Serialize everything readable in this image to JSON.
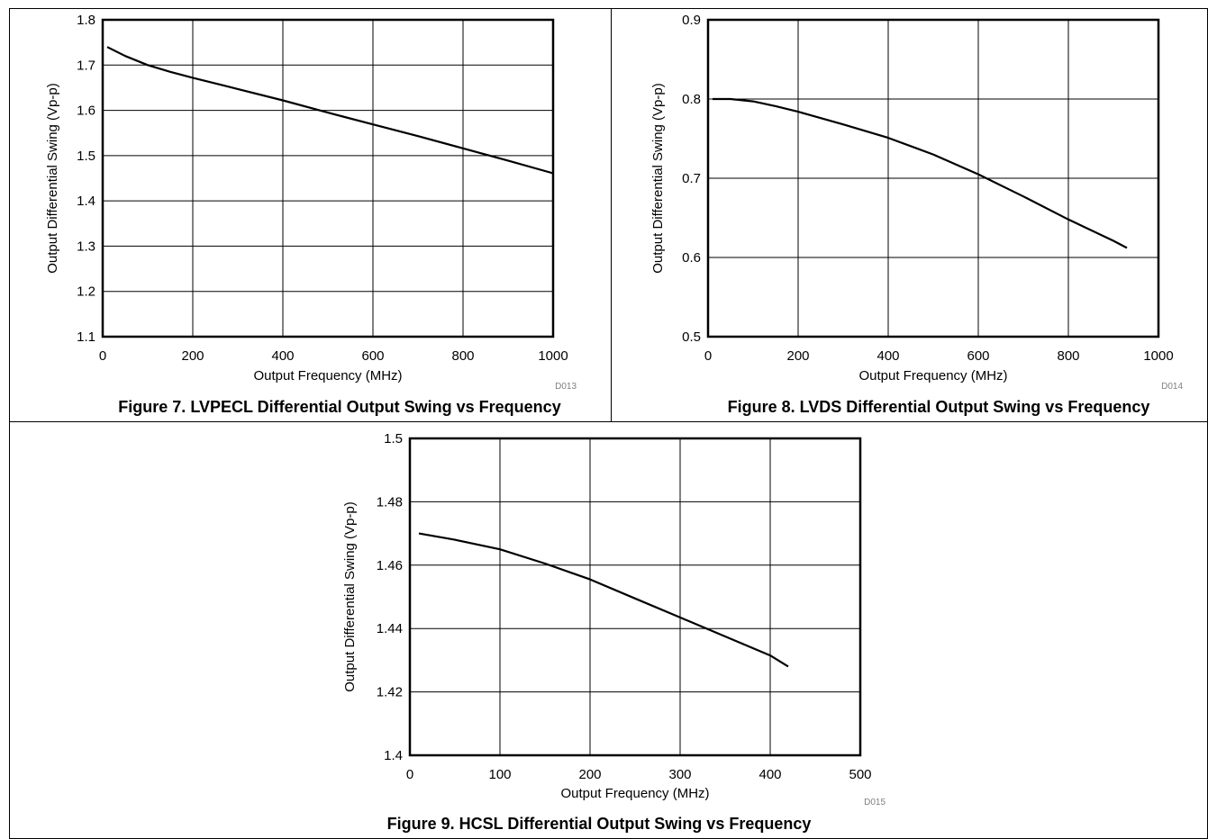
{
  "chart_data": [
    {
      "type": "line",
      "caption": "Figure 7. LVPECL Differential Output Swing vs Frequency",
      "xlabel": "Output Frequency (MHz)",
      "ylabel": "Output Differential Swing (Vp-p)",
      "code": "D013",
      "xlim": [
        0,
        1000
      ],
      "ylim": [
        1.1,
        1.8
      ],
      "xticks": [
        "0",
        "200",
        "400",
        "600",
        "800",
        "1000"
      ],
      "yticks": [
        "1.1",
        "1.2",
        "1.3",
        "1.4",
        "1.5",
        "1.6",
        "1.7",
        "1.8"
      ],
      "grid": true,
      "series": [
        {
          "x": [
            10,
            50,
            100,
            150,
            200,
            300,
            400,
            500,
            600,
            700,
            800,
            900,
            1000
          ],
          "y": [
            1.74,
            1.72,
            1.7,
            1.685,
            1.672,
            1.647,
            1.622,
            1.595,
            1.569,
            1.543,
            1.516,
            1.489,
            1.461
          ]
        }
      ]
    },
    {
      "type": "line",
      "caption": "Figure 8. LVDS Differential Output Swing vs Frequency",
      "xlabel": "Output Frequency (MHz)",
      "ylabel": "Output Differential Swing (Vp-p)",
      "code": "D014",
      "xlim": [
        0,
        1000
      ],
      "ylim": [
        0.5,
        0.9
      ],
      "xticks": [
        "0",
        "200",
        "400",
        "600",
        "800",
        "1000"
      ],
      "yticks": [
        "0.5",
        "0.6",
        "0.7",
        "0.8",
        "0.9"
      ],
      "grid": true,
      "series": [
        {
          "x": [
            10,
            50,
            100,
            150,
            200,
            300,
            400,
            500,
            600,
            700,
            800,
            900,
            930
          ],
          "y": [
            0.8,
            0.8,
            0.797,
            0.791,
            0.784,
            0.768,
            0.751,
            0.73,
            0.705,
            0.677,
            0.648,
            0.621,
            0.612
          ]
        }
      ]
    },
    {
      "type": "line",
      "caption": "Figure 9. HCSL Differential Output Swing vs Frequency",
      "xlabel": "Output Frequency (MHz)",
      "ylabel": "Output Differential Swing (Vp-p)",
      "code": "D015",
      "xlim": [
        0,
        500
      ],
      "ylim": [
        1.4,
        1.5
      ],
      "xticks": [
        "0",
        "100",
        "200",
        "300",
        "400",
        "500"
      ],
      "yticks": [
        "1.4",
        "1.42",
        "1.44",
        "1.46",
        "1.48",
        "1.5"
      ],
      "grid": true,
      "series": [
        {
          "x": [
            10,
            50,
            100,
            150,
            200,
            250,
            300,
            350,
            400,
            420
          ],
          "y": [
            1.47,
            1.468,
            1.465,
            1.4605,
            1.4555,
            1.4495,
            1.4435,
            1.4375,
            1.4315,
            1.428
          ]
        }
      ]
    }
  ]
}
